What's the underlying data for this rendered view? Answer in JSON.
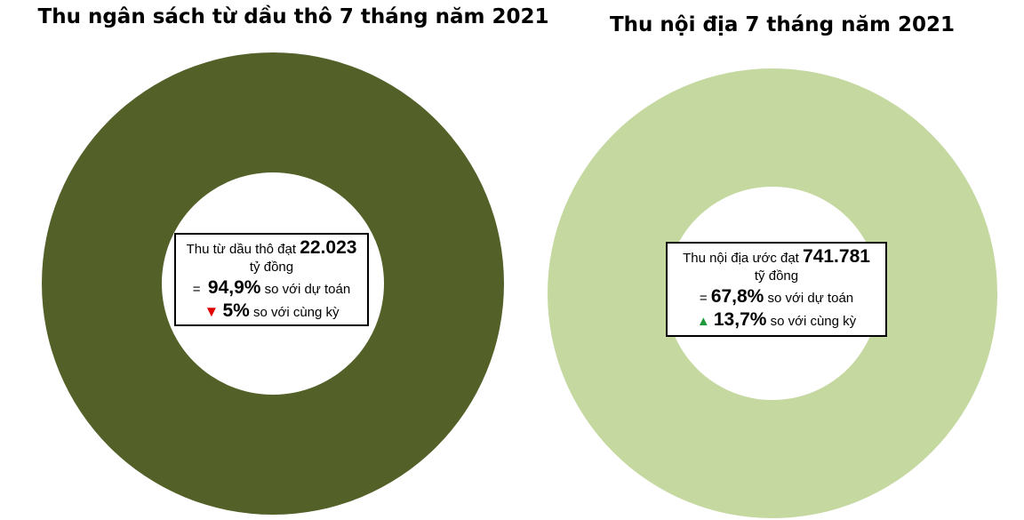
{
  "colors": {
    "left_ring": "#536129",
    "right_ring": "#c5d8a0",
    "down_arrow": "#e00000",
    "up_arrow": "#1f9a3b"
  },
  "chart_data": [
    {
      "type": "pie",
      "title": "Thu ngân sách từ dầu thô 7 tháng năm 2021",
      "categories": [
        ""
      ],
      "values": [
        100
      ],
      "color": "#536129",
      "box": {
        "line1_text": "Thu từ dầu thô đạt",
        "line1_value": "22.023",
        "line2_text": "tỷ đồng",
        "line3_prefix": "=",
        "line3_value": "94,9%",
        "line3_text": "so với dự toán",
        "line4_arrow": "▼",
        "line4_arrow_icon": "down-triangle-icon",
        "line4_value": "5%",
        "line4_text": "so với cùng kỳ"
      }
    },
    {
      "type": "pie",
      "title": "Thu nội địa 7 tháng năm 2021",
      "categories": [
        ""
      ],
      "values": [
        100
      ],
      "color": "#c5d8a0",
      "box": {
        "line1_text": "Thu nội địa ước đạt",
        "line1_value": "741.781",
        "line2_text": "tỹ đồng",
        "line3_prefix": "=",
        "line3_value": "67,8%",
        "line3_text": "so với dự toán",
        "line4_arrow": "▲",
        "line4_arrow_icon": "up-triangle-icon",
        "line4_value": "13,7%",
        "line4_text": "so với cùng kỳ"
      }
    }
  ]
}
